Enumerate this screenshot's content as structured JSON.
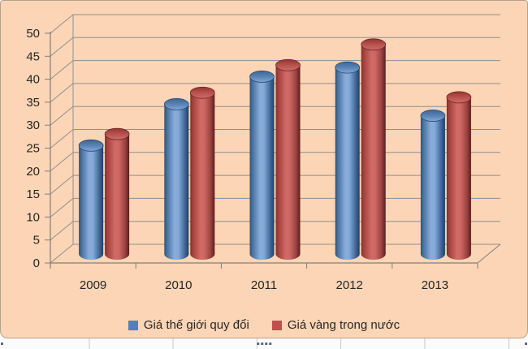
{
  "chart_data": {
    "type": "bar",
    "subtype": "3d-cylinder",
    "title": "",
    "categories": [
      "2009",
      "2010",
      "2011",
      "2012",
      "2013"
    ],
    "series": [
      {
        "name": "Giá thế giới quy đổi",
        "color": "#4F81BD",
        "values": [
          24.5,
          33.5,
          39.5,
          41.5,
          31
        ],
        "shade": {
          "body_stops": [
            [
              0,
              "#2F5078"
            ],
            [
              10,
              "#45709F"
            ],
            [
              42,
              "#89ADDB"
            ],
            [
              58,
              "#84A9D8"
            ],
            [
              85,
              "#3D6595"
            ],
            [
              100,
              "#253F5F"
            ]
          ],
          "top_stops": [
            [
              0,
              "#3E6697"
            ],
            [
              55,
              "#5C85B8"
            ],
            [
              100,
              "#82A7D6"
            ]
          ],
          "top_stroke": "#2A4A6F"
        }
      },
      {
        "name": "Giá vàng trong nước",
        "color": "#C0504D",
        "values": [
          27,
          36,
          42,
          46.5,
          35
        ],
        "shade": {
          "body_stops": [
            [
              0,
              "#7E2F2C"
            ],
            [
              10,
              "#A4403D"
            ],
            [
              42,
              "#D06B66"
            ],
            [
              58,
              "#CC6763"
            ],
            [
              85,
              "#96403D"
            ],
            [
              100,
              "#571D1C"
            ]
          ],
          "top_stops": [
            [
              0,
              "#97352F"
            ],
            [
              55,
              "#BA5551"
            ],
            [
              100,
              "#CE6D68"
            ]
          ],
          "top_stroke": "#6E2523"
        }
      }
    ],
    "ylim": [
      0,
      50
    ],
    "y_ticks": [
      0,
      5,
      10,
      15,
      20,
      25,
      30,
      35,
      40,
      45,
      50
    ],
    "xlabel": "",
    "ylabel": "",
    "grid": true,
    "legend_position": "bottom",
    "background": "#FBD5B5",
    "border_color": "#B7A18C",
    "gridline_color": "#8F8F8F",
    "axis_color": "#7F7F7F",
    "label_color": "#262626"
  },
  "worksheet": {
    "background": "#FBFBFB",
    "gridline": "#C9C9C9",
    "handle_color": "#5A6B7E"
  }
}
